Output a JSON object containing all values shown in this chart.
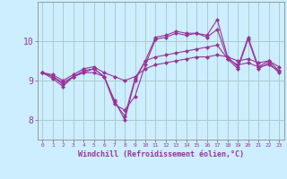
{
  "bg_color": "#cceeff",
  "grid_color": "#aacccc",
  "line_color": "#993399",
  "marker_color": "#993399",
  "xlabel": "Windchill (Refroidissement éolien,°C)",
  "xlabel_color": "#993399",
  "xtick_color": "#993399",
  "ytick_color": "#993399",
  "xlim": [
    -0.5,
    23.5
  ],
  "ylim": [
    7.5,
    11.0
  ],
  "yticks": [
    8,
    9,
    10
  ],
  "xticks": [
    0,
    1,
    2,
    3,
    4,
    5,
    6,
    7,
    8,
    9,
    10,
    11,
    12,
    13,
    14,
    15,
    16,
    17,
    18,
    19,
    20,
    21,
    22,
    23
  ],
  "series": [
    [
      9.2,
      9.1,
      8.9,
      9.1,
      9.2,
      9.3,
      9.1,
      8.5,
      8.0,
      9.0,
      9.5,
      10.1,
      10.15,
      10.25,
      10.2,
      10.2,
      10.15,
      10.55,
      9.6,
      9.35,
      10.1,
      9.35,
      9.5,
      9.25
    ],
    [
      9.2,
      9.05,
      8.85,
      9.1,
      9.2,
      9.2,
      9.1,
      8.4,
      8.25,
      8.6,
      9.4,
      10.05,
      10.1,
      10.2,
      10.15,
      10.2,
      10.1,
      10.3,
      9.55,
      9.3,
      10.05,
      9.3,
      9.45,
      9.2
    ],
    [
      9.2,
      9.1,
      8.95,
      9.1,
      9.25,
      9.3,
      9.1,
      8.45,
      8.1,
      9.05,
      9.5,
      9.6,
      9.65,
      9.7,
      9.75,
      9.8,
      9.85,
      9.9,
      9.55,
      9.4,
      9.45,
      9.35,
      9.4,
      9.25
    ],
    [
      9.2,
      9.15,
      9.0,
      9.15,
      9.3,
      9.35,
      9.2,
      9.1,
      9.0,
      9.1,
      9.3,
      9.4,
      9.45,
      9.5,
      9.55,
      9.6,
      9.6,
      9.65,
      9.6,
      9.5,
      9.55,
      9.45,
      9.5,
      9.35
    ]
  ]
}
